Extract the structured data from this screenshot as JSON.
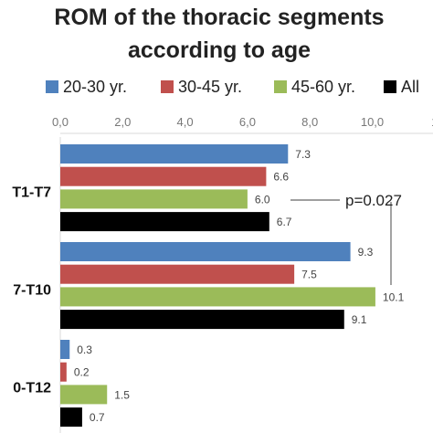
{
  "chart_data": {
    "type": "bar",
    "orientation": "horizontal",
    "title_line1": "ROM of the thoracic segments",
    "title_line2": "according to age",
    "categories": [
      "T1-T7",
      "7-T10",
      "0-T12"
    ],
    "series": [
      {
        "name": "20-30 yr.",
        "color": "#4f81bd",
        "values": [
          7.3,
          9.3,
          0.3
        ],
        "labels": [
          "7.3",
          "9.3",
          "0.3"
        ]
      },
      {
        "name": "30-45 yr.",
        "color": "#c0504d",
        "values": [
          6.6,
          7.5,
          0.2
        ],
        "labels": [
          "6.6",
          "7.5",
          "0.2"
        ]
      },
      {
        "name": "45-60 yr.",
        "color": "#9bbb59",
        "values": [
          6.0,
          10.1,
          1.5
        ],
        "labels": [
          "6.0",
          "10.1",
          "1.5"
        ]
      },
      {
        "name": "All",
        "color": "#000000",
        "values": [
          6.7,
          9.1,
          0.7
        ],
        "labels": [
          "6.7",
          "9.1",
          "0.7"
        ]
      }
    ],
    "xticks": [
      "0,0",
      "2,0",
      "4,0",
      "6,0",
      "8,0",
      "10,0",
      "1"
    ],
    "xlim": [
      0,
      12
    ],
    "legend_position": "top",
    "annotation": "p=0.027"
  }
}
